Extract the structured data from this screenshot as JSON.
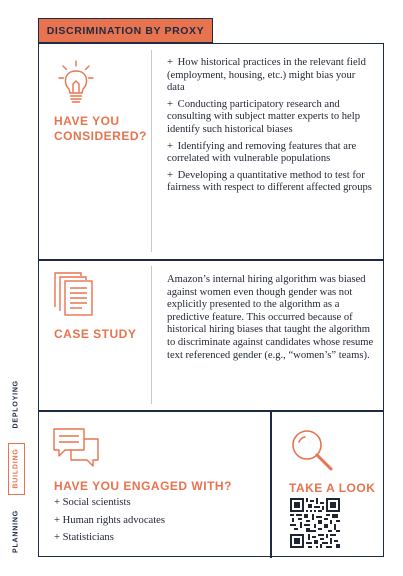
{
  "header": {
    "title": "DISCRIMINATION BY PROXY"
  },
  "considered": {
    "label_line1": "HAVE YOU",
    "label_line2": "CONSIDERED?",
    "icon": "lightbulb-icon",
    "items": [
      "How historical practices in the relevant field (employment, housing, etc.) might bias your data",
      "Conducting participatory research and consulting with subject matter experts to help identify such historical biases",
      "Identifying and removing features that are correlated with vulnerable populations",
      "Developing a quantitative method to test for fairness with respect to different affected groups"
    ]
  },
  "case_study": {
    "label": "CASE STUDY",
    "icon": "document-stack-icon",
    "text": "Amazon’s internal hiring algorithm was biased against women even though gender was not explicitly presented to the algorithm as a predictive feature. This occurred because of historical hiring biases that taught the algorithm to discriminate against candidates whose resume text referenced gender (e.g., “women’s” teams)."
  },
  "engaged": {
    "label": "HAVE YOU ENGAGED WITH?",
    "icon": "chat-bubbles-icon",
    "items": [
      "Social scientists",
      "Human rights advocates",
      "Statisticians"
    ]
  },
  "take_a_look": {
    "label": "TAKE A LOOK",
    "icon": "magnifier-icon",
    "qr_icon": "qr-code-icon"
  },
  "side_nav": {
    "items": [
      "PLANNING",
      "BUILDING",
      "DEPLOYING"
    ],
    "active": "BUILDING"
  },
  "colors": {
    "accent": "#e8734f",
    "ink": "#1f2a44"
  }
}
